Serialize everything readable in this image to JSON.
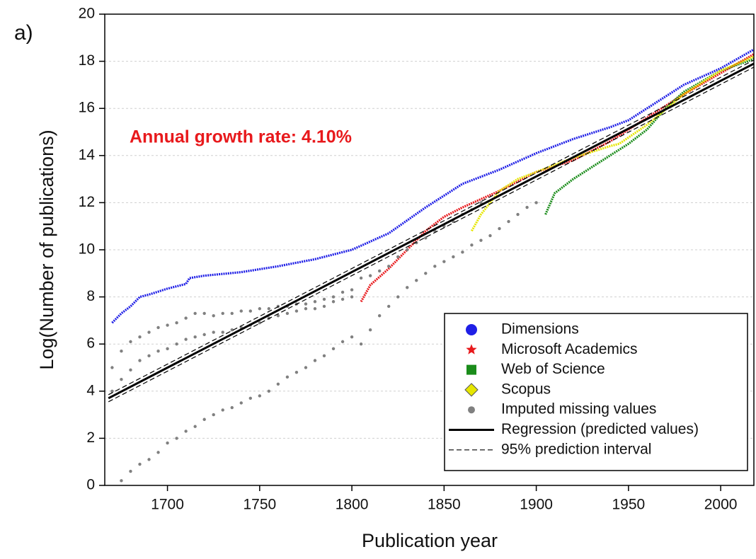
{
  "chart_data": {
    "type": "line",
    "panel_label": "a)",
    "annotation": "Annual growth rate: 4.10%",
    "annotation_color": "#e8191c",
    "xlabel": "Publication year",
    "ylabel": "Log(Number of publications)",
    "xlim": [
      1666,
      2018
    ],
    "ylim": [
      0,
      20
    ],
    "xticks": [
      1700,
      1750,
      1800,
      1850,
      1900,
      1950,
      2000
    ],
    "yticks": [
      0,
      2,
      4,
      6,
      8,
      10,
      12,
      14,
      16,
      18,
      20
    ],
    "grid": true,
    "legend": "lower right",
    "series": [
      {
        "name": "Dimensions",
        "color": "#1f1fe6",
        "marker": "circle",
        "style": "points-line",
        "x": [
          1670,
          1675,
          1680,
          1685,
          1690,
          1700,
          1710,
          1712,
          1720,
          1740,
          1760,
          1780,
          1800,
          1820,
          1840,
          1860,
          1880,
          1900,
          1920,
          1940,
          1950,
          1960,
          1980,
          2000,
          2018
        ],
        "values": [
          6.9,
          7.3,
          7.6,
          8.0,
          8.1,
          8.35,
          8.55,
          8.8,
          8.9,
          9.05,
          9.3,
          9.6,
          10.0,
          10.7,
          11.8,
          12.8,
          13.4,
          14.1,
          14.7,
          15.2,
          15.5,
          16.0,
          17.0,
          17.7,
          18.5
        ]
      },
      {
        "name": "Microsoft Academics",
        "color": "#e8191c",
        "marker": "star",
        "style": "points-line",
        "x": [
          1805,
          1810,
          1820,
          1830,
          1840,
          1850,
          1860,
          1880,
          1900,
          1920,
          1940,
          1960,
          1980,
          2000,
          2018
        ],
        "values": [
          7.8,
          8.5,
          9.2,
          10.0,
          10.8,
          11.4,
          11.8,
          12.5,
          13.3,
          13.8,
          14.6,
          15.6,
          16.6,
          17.5,
          18.3
        ]
      },
      {
        "name": "Web of Science",
        "color": "#1a8c1a",
        "marker": "square",
        "style": "points-line",
        "x": [
          1905,
          1910,
          1920,
          1930,
          1940,
          1950,
          1960,
          1970,
          1980,
          2000,
          2018
        ],
        "values": [
          11.5,
          12.4,
          13.0,
          13.5,
          14.0,
          14.5,
          15.1,
          16.0,
          16.7,
          17.6,
          18.1
        ]
      },
      {
        "name": "Scopus",
        "color": "#e6e600",
        "marker": "diamond",
        "style": "points-line",
        "x": [
          1865,
          1870,
          1880,
          1890,
          1900,
          1920,
          1940,
          1945,
          1960,
          1980,
          2000,
          2018
        ],
        "values": [
          10.8,
          11.5,
          12.5,
          13.0,
          13.3,
          13.9,
          14.4,
          14.5,
          15.3,
          16.6,
          17.6,
          18.2
        ]
      },
      {
        "name": "Imputed missing values",
        "color": "#808080",
        "marker": "circle",
        "style": "scatter",
        "x": [
          1675,
          1680,
          1685,
          1690,
          1695,
          1700,
          1705,
          1710,
          1715,
          1720,
          1725,
          1730,
          1735,
          1740,
          1745,
          1750,
          1755,
          1760,
          1765,
          1770,
          1775,
          1780,
          1785,
          1790,
          1795,
          1800,
          1805,
          1810,
          1815,
          1820,
          1825,
          1830,
          1835,
          1840,
          1845,
          1850,
          1855,
          1860,
          1865,
          1870,
          1875,
          1880,
          1885,
          1890,
          1895,
          1900,
          1670,
          1675,
          1680,
          1685,
          1690,
          1695,
          1700,
          1705,
          1710,
          1715,
          1720,
          1725,
          1730,
          1735,
          1740,
          1745,
          1750,
          1755,
          1760,
          1765,
          1770,
          1775,
          1780,
          1785,
          1790,
          1795,
          1800,
          1670,
          1675,
          1680,
          1685,
          1690,
          1695,
          1700,
          1705,
          1710,
          1715,
          1720,
          1725,
          1730,
          1735,
          1740,
          1745,
          1750,
          1755,
          1760,
          1765,
          1770,
          1775,
          1780,
          1785,
          1790,
          1795,
          1800,
          1805,
          1810,
          1815,
          1820,
          1825,
          1830,
          1835,
          1840,
          1845,
          1850,
          1855,
          1860,
          1865,
          1870
        ],
        "values": [
          0.2,
          0.6,
          0.9,
          1.1,
          1.4,
          1.8,
          2.0,
          2.3,
          2.5,
          2.8,
          3.0,
          3.2,
          3.3,
          3.5,
          3.7,
          3.8,
          4.0,
          4.3,
          4.6,
          4.8,
          5.0,
          5.3,
          5.5,
          5.8,
          6.1,
          6.3,
          6.0,
          6.6,
          7.2,
          7.6,
          8.0,
          8.4,
          8.7,
          9.0,
          9.3,
          9.5,
          9.7,
          9.9,
          10.2,
          10.4,
          10.6,
          10.9,
          11.2,
          11.5,
          11.8,
          12.0,
          4.0,
          4.5,
          4.9,
          5.3,
          5.5,
          5.7,
          5.8,
          6.0,
          6.2,
          6.3,
          6.4,
          6.5,
          6.5,
          6.6,
          6.7,
          6.8,
          6.9,
          7.1,
          7.2,
          7.3,
          7.4,
          7.5,
          7.5,
          7.6,
          7.8,
          7.9,
          8.0,
          5.0,
          5.7,
          6.1,
          6.3,
          6.5,
          6.7,
          6.8,
          6.9,
          7.1,
          7.3,
          7.3,
          7.2,
          7.3,
          7.3,
          7.4,
          7.4,
          7.5,
          7.5,
          7.6,
          7.6,
          7.7,
          7.7,
          7.8,
          7.9,
          8.0,
          8.2,
          8.3,
          8.8,
          8.9,
          9.1,
          9.3,
          9.7,
          10.0,
          10.3,
          10.5,
          10.8,
          11.0,
          11.2,
          11.5,
          11.7,
          12.0
        ]
      },
      {
        "name": "Regression (predicted values)",
        "color": "#000000",
        "style": "solid",
        "x": [
          1668,
          2018
        ],
        "values": [
          3.7,
          17.9
        ]
      },
      {
        "name": "95% prediction interval",
        "color": "#000000",
        "style": "dashed",
        "x": [
          1668,
          2018
        ],
        "values": [
          3.85,
          18.05
        ],
        "upper_x": [
          1668,
          2018
        ],
        "lower_values": [
          3.55,
          17.75
        ]
      }
    ]
  }
}
